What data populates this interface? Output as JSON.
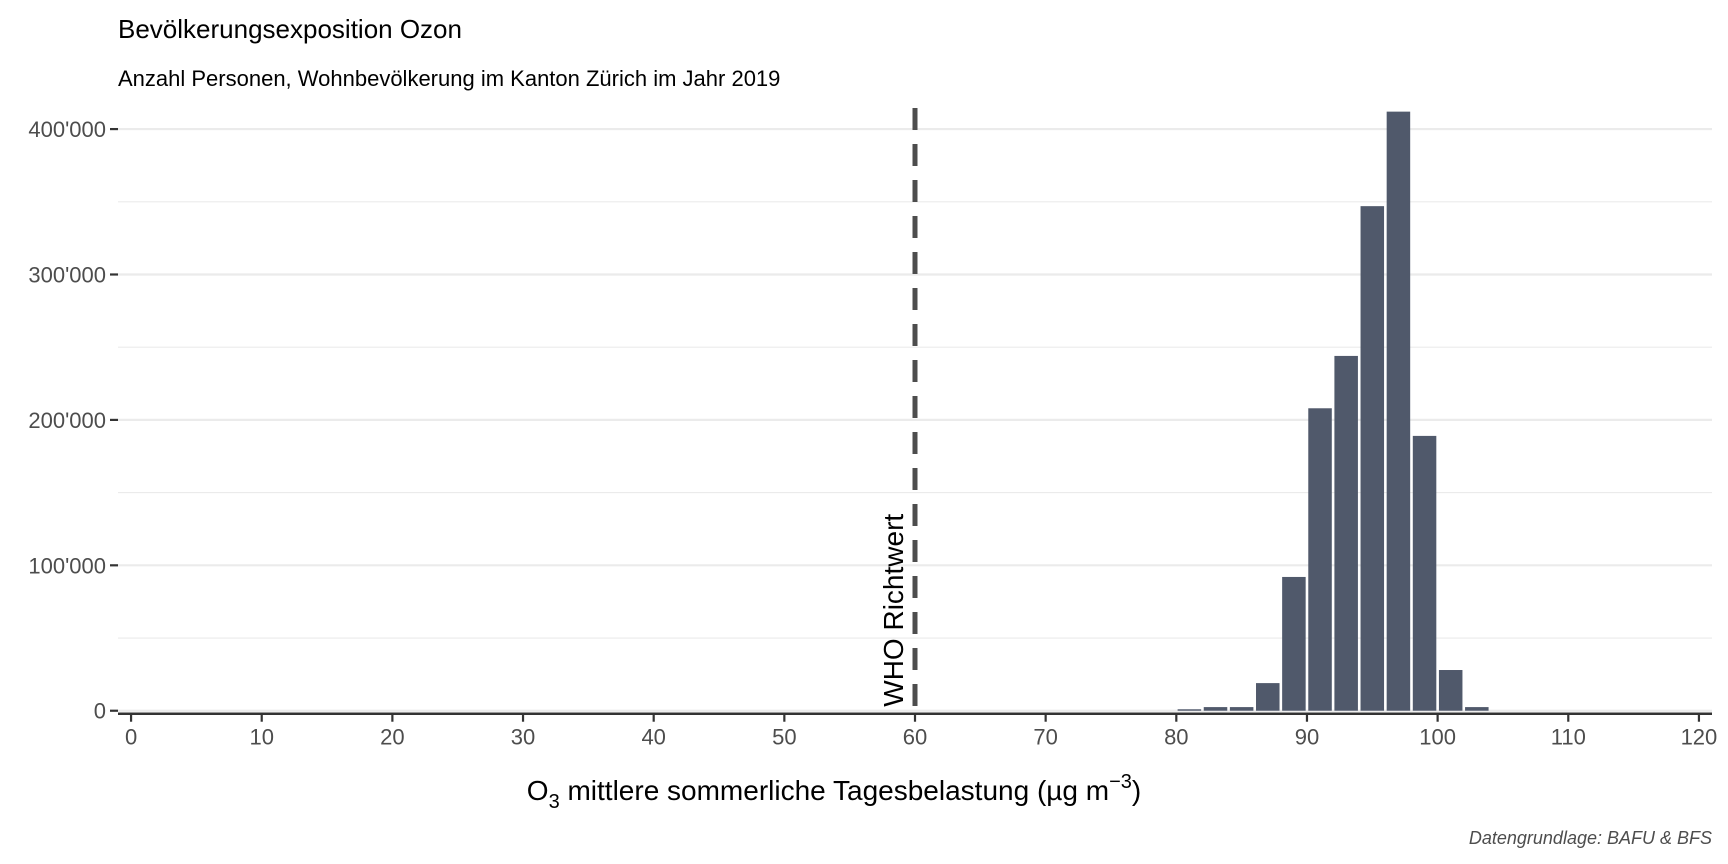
{
  "chart_data": {
    "type": "bar",
    "title": "Bevölkerungsexposition Ozon",
    "subtitle": "Anzahl Personen, Wohnbevölkerung im Kanton Zürich im Jahr 2019",
    "xlabel": {
      "pre": "O",
      "sub": "3",
      "mid": " mittlere sommerliche Tagesbelastung (µg m",
      "sup": "−3",
      "post": ")"
    },
    "caption": "Datengrundlage: BAFU & BFS",
    "xlim": [
      -1,
      121
    ],
    "ylim": [
      -5000,
      420000
    ],
    "x_ticks": [
      0,
      10,
      20,
      30,
      40,
      50,
      60,
      70,
      80,
      90,
      100,
      110,
      120
    ],
    "y_ticks": [
      0,
      100000,
      200000,
      300000,
      400000
    ],
    "y_tick_labels": [
      "0",
      "100'000",
      "200'000",
      "300'000",
      "400'000"
    ],
    "grid": true,
    "bar_color": "#50596b",
    "bar_width": 1.8,
    "bars": [
      {
        "x": 81,
        "value": 1000
      },
      {
        "x": 83,
        "value": 2500
      },
      {
        "x": 85,
        "value": 2500
      },
      {
        "x": 87,
        "value": 19000
      },
      {
        "x": 89,
        "value": 92000
      },
      {
        "x": 91,
        "value": 208000
      },
      {
        "x": 93,
        "value": 244000
      },
      {
        "x": 95,
        "value": 347000
      },
      {
        "x": 97,
        "value": 412000
      },
      {
        "x": 99,
        "value": 189000
      },
      {
        "x": 101,
        "value": 28000
      },
      {
        "x": 103,
        "value": 2500
      }
    ],
    "reference_line": {
      "x": 60,
      "label": "WHO Richtwert",
      "color": "#4d4d4d"
    }
  }
}
